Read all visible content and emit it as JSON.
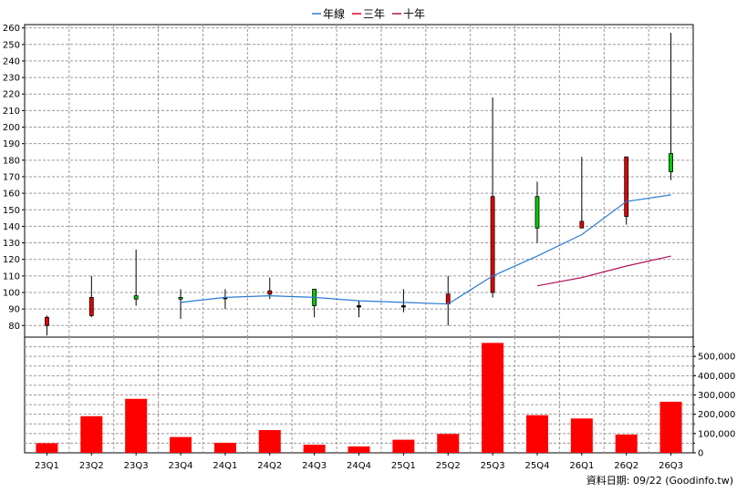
{
  "chart_data": [
    {
      "type": "candlestick",
      "title": "",
      "legend": {
        "placement": "top-center",
        "entries": [
          {
            "label": "年線",
            "color": "#2a7bd4"
          },
          {
            "label": "三年",
            "color": "#e0001a"
          },
          {
            "label": "十年",
            "color": "#b0105a"
          }
        ]
      },
      "categories": [
        "23Q1",
        "23Q2",
        "23Q3",
        "23Q4",
        "24Q1",
        "24Q2",
        "24Q3",
        "24Q4",
        "25Q1",
        "25Q2",
        "25Q3",
        "25Q4",
        "26Q1",
        "26Q2",
        "26Q3"
      ],
      "ylim": [
        73,
        262
      ],
      "yticks": [
        80,
        90,
        100,
        110,
        120,
        130,
        140,
        150,
        160,
        170,
        180,
        190,
        200,
        210,
        220,
        230,
        240,
        250,
        260
      ],
      "grid": true,
      "candles": [
        {
          "open": 80,
          "close": 85,
          "high": 86,
          "low": 74
        },
        {
          "open": 86,
          "close": 97,
          "high": 110,
          "low": 85
        },
        {
          "open": 98,
          "close": 96,
          "high": 126,
          "low": 92
        },
        {
          "open": 97,
          "close": 96,
          "high": 102,
          "low": 84
        },
        {
          "open": 97,
          "close": 97,
          "high": 102,
          "low": 90
        },
        {
          "open": 99,
          "close": 101,
          "high": 109,
          "low": 96
        },
        {
          "open": 102,
          "close": 92,
          "high": 102,
          "low": 85
        },
        {
          "open": 92,
          "close": 92,
          "high": 95,
          "low": 85
        },
        {
          "open": 92,
          "close": 92,
          "high": 102,
          "low": 88
        },
        {
          "open": 93,
          "close": 99,
          "high": 110,
          "low": 80
        },
        {
          "open": 100,
          "close": 158,
          "high": 218,
          "low": 97
        },
        {
          "open": 158,
          "close": 139,
          "high": 167,
          "low": 130
        },
        {
          "open": 139,
          "close": 143,
          "high": 182,
          "low": 139
        },
        {
          "open": 146,
          "close": 182,
          "high": 182,
          "low": 141
        },
        {
          "open": 184,
          "close": 173,
          "high": 257,
          "low": 168
        }
      ],
      "up_color": "#e60000",
      "down_color": "#00cc00",
      "series": [
        {
          "name": "年線",
          "color": "#2a7bd4",
          "values": [
            null,
            null,
            null,
            94,
            97,
            98,
            97,
            95,
            94,
            93,
            110,
            122,
            135,
            155,
            159
          ]
        },
        {
          "name": "三年",
          "color": "#e0001a",
          "values": [
            null,
            null,
            null,
            null,
            null,
            null,
            null,
            null,
            null,
            null,
            null,
            null,
            null,
            null,
            null
          ]
        },
        {
          "name": "十年",
          "color": "#b0105a",
          "values": [
            null,
            null,
            null,
            null,
            null,
            null,
            null,
            null,
            null,
            null,
            null,
            104,
            109,
            116,
            122
          ]
        }
      ]
    },
    {
      "type": "bar",
      "categories": [
        "23Q1",
        "23Q2",
        "23Q3",
        "23Q4",
        "24Q1",
        "24Q2",
        "24Q3",
        "24Q4",
        "25Q1",
        "25Q2",
        "25Q3",
        "25Q4",
        "26Q1",
        "26Q2",
        "26Q3"
      ],
      "values": [
        50000,
        190000,
        280000,
        82000,
        52000,
        118000,
        42000,
        33000,
        68000,
        98000,
        570000,
        195000,
        178000,
        95000,
        265000
      ],
      "ylim": [
        0,
        600000
      ],
      "yticks": [
        0,
        100000,
        200000,
        300000,
        400000,
        500000
      ],
      "ytick_labels": [
        "0",
        "100,000",
        "200,000",
        "300,000",
        "400,000",
        "500,000"
      ],
      "bar_color": "#ff0000",
      "grid": true
    }
  ],
  "footer": {
    "text": "資料日期: 09/22  (Goodinfo.tw)"
  }
}
